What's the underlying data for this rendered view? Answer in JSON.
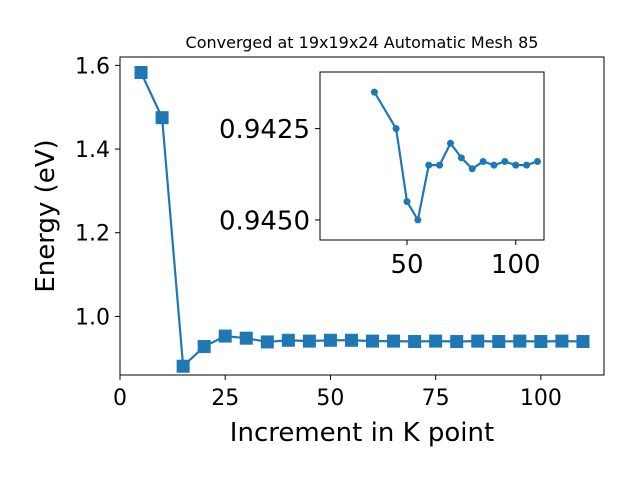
{
  "chart_data": [
    {
      "type": "line",
      "title": "Converged at 19x19x24 Automatic Mesh 85",
      "xlabel": "Increment in K point",
      "ylabel": "Energy (eV)",
      "xlim": [
        0,
        115
      ],
      "ylim": [
        0.86,
        1.62
      ],
      "xticks": [
        0,
        25,
        50,
        75,
        100
      ],
      "yticks": [
        1.0,
        1.2,
        1.4,
        1.6
      ],
      "xtick_labels": [
        "0",
        "25",
        "50",
        "75",
        "100"
      ],
      "ytick_labels": [
        "1.0",
        "1.2",
        "1.4",
        "1.6"
      ],
      "marker": "square",
      "color": "#1f77b4",
      "grid": false,
      "series": [
        {
          "x": [
            5,
            10,
            15,
            20,
            25,
            30,
            35,
            40,
            45,
            50,
            55,
            60,
            65,
            70,
            75,
            80,
            85,
            90,
            95,
            100,
            105,
            110
          ],
          "values": [
            1.583,
            1.475,
            0.881,
            0.928,
            0.953,
            0.948,
            0.939,
            0.943,
            0.941,
            0.943,
            0.943,
            0.941,
            0.941,
            0.94,
            0.941,
            0.94,
            0.941,
            0.94,
            0.941,
            0.94,
            0.941,
            0.94
          ]
        }
      ]
    },
    {
      "type": "line",
      "title": "",
      "xlabel": "",
      "ylabel": "",
      "xlim": [
        10,
        113
      ],
      "ylim": [
        0.94555,
        0.94095
      ],
      "y_inverted": true,
      "xticks": [
        50,
        100
      ],
      "yticks": [
        0.9425,
        0.945
      ],
      "xtick_labels": [
        "50",
        "100"
      ],
      "ytick_labels": [
        "0.9425",
        "0.9450"
      ],
      "marker": "circle",
      "color": "#1f77b4",
      "grid": false,
      "series": [
        {
          "x": [
            35,
            45,
            50,
            55,
            60,
            65,
            70,
            75,
            80,
            85,
            90,
            95,
            100,
            105,
            110
          ],
          "values": [
            0.9415,
            0.9425,
            0.9445,
            0.945,
            0.9435,
            0.9435,
            0.9429,
            0.9433,
            0.9436,
            0.9434,
            0.9435,
            0.9434,
            0.9435,
            0.9435,
            0.9434
          ]
        }
      ]
    }
  ]
}
